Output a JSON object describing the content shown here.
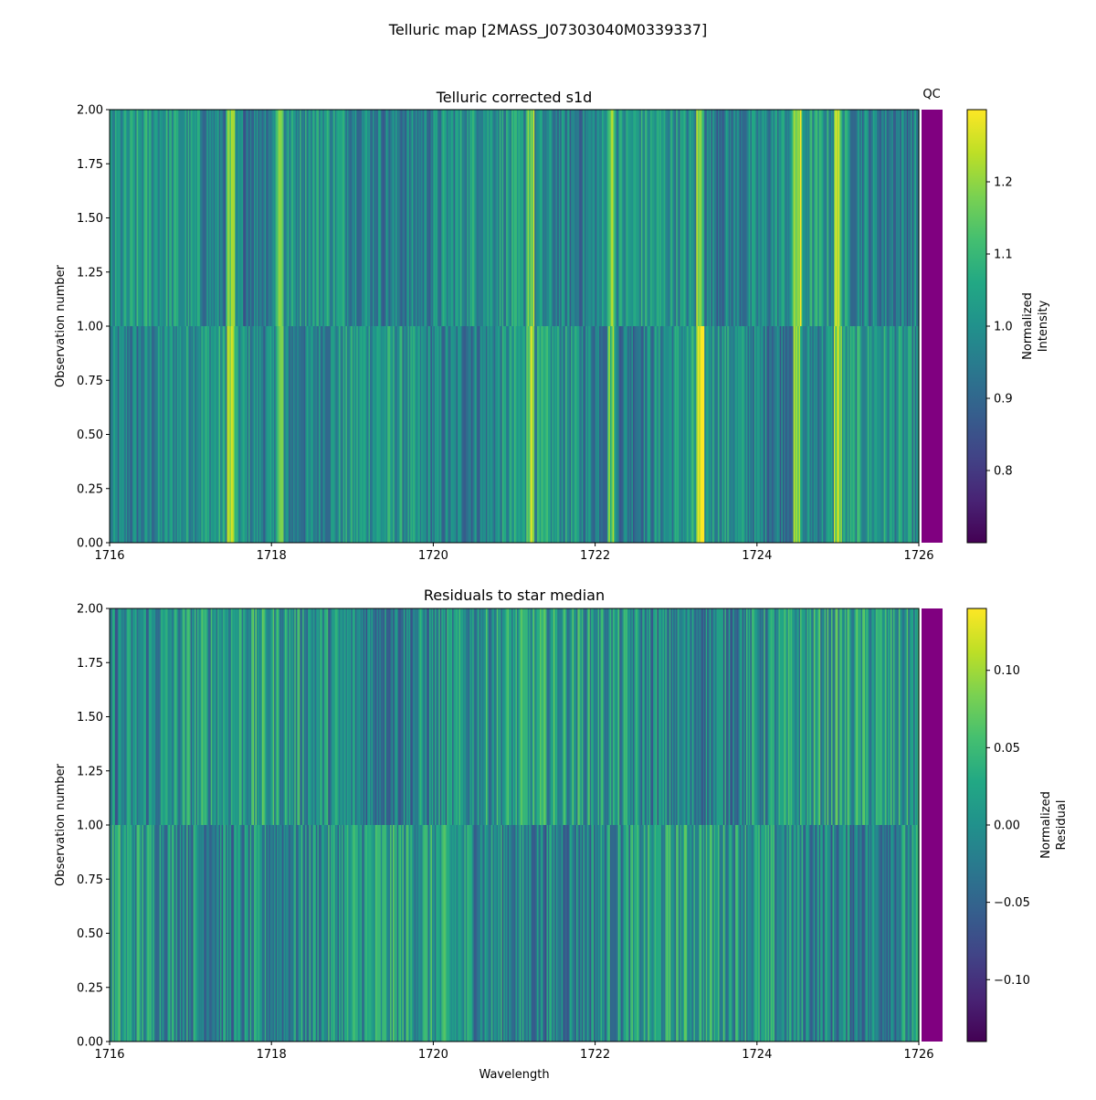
{
  "figure": {
    "title": "Telluric map [2MASS_J07303040M0339337]"
  },
  "chart_data": [
    {
      "type": "heatmap",
      "title": "Telluric corrected s1d",
      "xlabel": "",
      "ylabel": "Observation number",
      "xlim": [
        1716,
        1726
      ],
      "ylim": [
        0,
        2
      ],
      "xticks": [
        "1716",
        "1718",
        "1720",
        "1722",
        "1724",
        "1726"
      ],
      "yticks": [
        "0.00",
        "0.25",
        "0.50",
        "0.75",
        "1.00",
        "1.25",
        "1.50",
        "1.75",
        "2.00"
      ],
      "rows": [
        {
          "observation": 0,
          "y_range": [
            0,
            1
          ]
        },
        {
          "observation": 1,
          "y_range": [
            1,
            2
          ]
        }
      ],
      "colormap": "viridis",
      "colorbar": {
        "label_line1": "Normalized",
        "label_line2": "Intensity",
        "range": [
          0.7,
          1.3
        ],
        "ticks": [
          "0.8",
          "0.9",
          "1.0",
          "1.1",
          "1.2"
        ]
      },
      "strong_features_wavelength": [
        1717.5,
        1718.1,
        1721.2,
        1722.2,
        1723.3,
        1724.5,
        1725.0
      ],
      "qc": {
        "label": "QC",
        "color": "#800080"
      }
    },
    {
      "type": "heatmap",
      "title": "Residuals to star median",
      "xlabel": "Wavelength",
      "ylabel": "Observation number",
      "xlim": [
        1716,
        1726
      ],
      "ylim": [
        0,
        2
      ],
      "xticks": [
        "1716",
        "1718",
        "1720",
        "1722",
        "1724",
        "1726"
      ],
      "yticks": [
        "0.00",
        "0.25",
        "0.50",
        "0.75",
        "1.00",
        "1.25",
        "1.50",
        "1.75",
        "2.00"
      ],
      "rows": [
        {
          "observation": 0,
          "y_range": [
            0,
            1
          ]
        },
        {
          "observation": 1,
          "y_range": [
            1,
            2
          ]
        }
      ],
      "colormap": "viridis",
      "colorbar": {
        "label_line1": "Normalized",
        "label_line2": "Residual",
        "range": [
          -0.14,
          0.14
        ],
        "ticks": [
          "0.10",
          "0.05",
          "0.00",
          "−0.05",
          "−0.10"
        ]
      },
      "qc": {
        "label": "",
        "color": "#800080"
      }
    }
  ]
}
